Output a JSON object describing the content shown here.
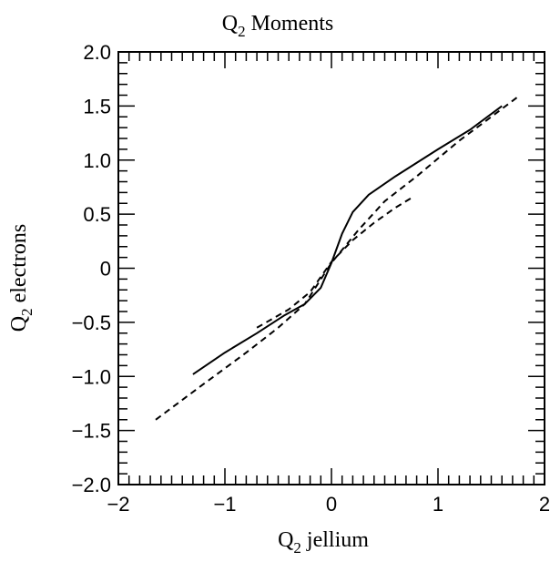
{
  "chart_data": {
    "type": "line",
    "title": {
      "main": "Q",
      "sub": "2",
      "rest": " Moments"
    },
    "xlabel": {
      "main": "Q",
      "sub": "2",
      "rest": " jellium"
    },
    "ylabel": {
      "main": "Q",
      "sub": "2",
      "rest": " electrons"
    },
    "xlim": [
      -2,
      2
    ],
    "ylim": [
      -2,
      2
    ],
    "x_major_ticks": [
      -2,
      -1,
      0,
      1,
      2
    ],
    "x_tick_labels": [
      "−2",
      "−1",
      "0",
      "1",
      "2"
    ],
    "y_major_ticks": [
      -2,
      -1.5,
      -1,
      -0.5,
      0,
      0.5,
      1,
      1.5,
      2
    ],
    "y_tick_labels": [
      "−2.0",
      "−1.5",
      "−1.0",
      "−0.5",
      "0",
      "0.5",
      "1.0",
      "1.5",
      "2.0"
    ],
    "grid": false,
    "series": [
      {
        "style": "solid",
        "color": "#000000",
        "x": [
          -1.3,
          -1.0,
          -0.7,
          -0.45,
          -0.25,
          -0.1,
          0.0,
          0.1,
          0.2,
          0.35,
          0.6,
          1.0,
          1.3,
          1.6
        ],
        "y": [
          -0.98,
          -0.78,
          -0.6,
          -0.44,
          -0.33,
          -0.18,
          0.05,
          0.32,
          0.52,
          0.68,
          0.85,
          1.1,
          1.28,
          1.5
        ]
      },
      {
        "style": "dashed",
        "color": "#000000",
        "x": [
          -1.65,
          -1.2,
          -0.8,
          -0.5,
          -0.25,
          0.0,
          0.25,
          0.5,
          0.8,
          1.2,
          1.5,
          1.77
        ],
        "y": [
          -1.4,
          -1.07,
          -0.78,
          -0.55,
          -0.33,
          0.05,
          0.35,
          0.62,
          0.85,
          1.18,
          1.4,
          1.6
        ]
      },
      {
        "style": "dashed",
        "color": "#000000",
        "x": [
          -0.7,
          -0.4,
          -0.2,
          0.0,
          0.2,
          0.4,
          0.6,
          0.75
        ],
        "y": [
          -0.55,
          -0.38,
          -0.22,
          0.06,
          0.26,
          0.42,
          0.56,
          0.65
        ]
      }
    ]
  }
}
